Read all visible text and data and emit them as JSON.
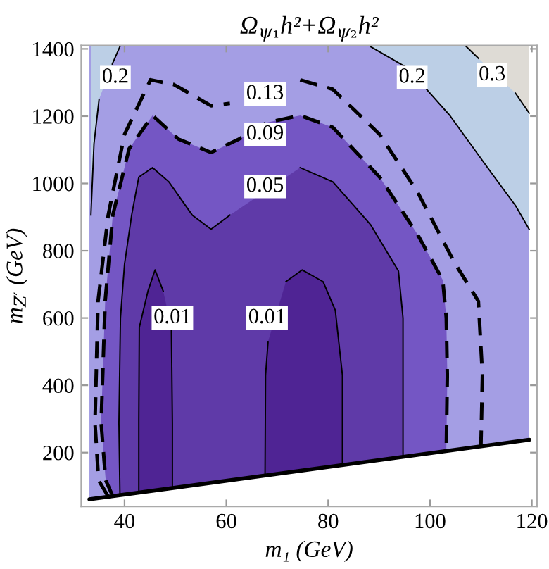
{
  "chart_data": {
    "type": "line",
    "title": "Ω$_{ψ₁}$h²+Ω$_{ψ₂}$h²",
    "xlabel": "m₁ (GeV)",
    "ylabel": "m$_{Z′}$ (GeV)",
    "xlim": [
      31.5,
      121
    ],
    "ylim": [
      40,
      1410
    ],
    "xticks": [
      40,
      60,
      80,
      100,
      120
    ],
    "yticks": [
      200,
      400,
      600,
      800,
      1000,
      1200,
      1400
    ],
    "series": [
      {
        "color": "#000000",
        "x": [
          33.1,
          119.5
        ],
        "values": [
          61,
          238
        ]
      },
      {
        "color": "#000000",
        "x": [
          39.1,
          37.6,
          35.9,
          35.0,
          34.0,
          33.4
        ],
        "values": [
          1407,
          1355,
          null,
          1250,
          1118,
          906
        ]
      },
      {
        "color": "#000000",
        "x": [
          88.3,
          95.6,
          103.9,
          111.3,
          116.8,
          119.5
        ],
        "values": [
          1407,
          1343,
          1202,
          1047,
          934,
          863
        ]
      },
      {
        "color": "#000000",
        "x": [
          107.1,
          109.5,
          113.0,
          116.8,
          119.5
        ],
        "values": [
          1407,
          1372,
          null,
          1268,
          1209
        ]
      },
      {
        "color": "#000000",
        "line_style": "dashed",
        "x": [
          36.8,
          34.9,
          34.2,
          34.8,
          36.8,
          40.0,
          45.1,
          49.7,
          57.0,
          60.7,
          66.2,
          74.5,
          80.9,
          90.1,
          97.5,
          104.8,
          109.5,
          110.3,
          110.0
        ],
        "values": [
          69,
          118,
          288,
          650,
          906,
          1146,
          1308,
          1294,
          1231,
          1238,
          null,
          1308,
          1280,
          1146,
          976,
          765,
          650,
          430,
          219
        ]
      },
      {
        "color": "#000000",
        "line_style": "dashed",
        "x": [
          37.7,
          36.3,
          35.4,
          36.2,
          37.7,
          40.9,
          45.5,
          50.6,
          57.0,
          62.5,
          68.0,
          74.5,
          80.9,
          90.1,
          97.5,
          102.5,
          103.2,
          103.4,
          103.2
        ],
        "values": [
          70,
          118,
          288,
          650,
          906,
          1103,
          1202,
          1132,
          1092,
          1132,
          1181,
          1202,
          1167,
          1019,
          850,
          713,
          600,
          430,
          205
        ]
      },
      {
        "color": "#000000",
        "x": [
          39.1,
          38.9,
          39.2,
          40.0,
          41.4,
          42.8,
          45.5,
          48.7,
          53.3,
          57.0,
          60.7,
          66.2,
          74.5,
          80.9,
          88.3,
          93.8,
          94.7,
          94.7,
          94.7
        ],
        "values": [
          73,
          288,
          600,
          760,
          906,
          1019,
          1047,
          1005,
          906,
          864,
          906,
          null,
          1047,
          1005,
          878,
          740,
          600,
          430,
          187
        ]
      },
      {
        "color": "#000000",
        "x": [
          42.8,
          42.8,
          42.9,
          44.6,
          46.0,
          47.6,
          48.3,
          49.2,
          49.4,
          49.4
        ],
        "values": [
          81,
          295,
          572,
          680,
          743,
          680,
          null,
          572,
          288,
          94
        ]
      },
      {
        "color": "#000000",
        "x": [
          67.6,
          67.7,
          68.2,
          69.9,
          71.7,
          74.9,
          79.0,
          81.4,
          82.8,
          82.8
        ],
        "values": [
          132,
          430,
          530,
          null,
          708,
          743,
          708,
          623,
          430,
          163
        ]
      }
    ],
    "bands": [
      {
        "axis": "x",
        "from": 33.1,
        "to": 119.5,
        "color": "#a49ee4"
      }
    ],
    "annotations": [
      {
        "text": "0.2",
        "x": 38.2,
        "y": 1315
      },
      {
        "text": "0.2",
        "x": 96.5,
        "y": 1315
      },
      {
        "text": "0.3",
        "x": 112.2,
        "y": 1322
      },
      {
        "text": "0.13",
        "x": 67.6,
        "y": 1266
      },
      {
        "text": "0.09",
        "x": 67.6,
        "y": 1146
      },
      {
        "text": "0.05",
        "x": 67.6,
        "y": 991
      },
      {
        "text": "0.01",
        "x": 49.4,
        "y": 600
      },
      {
        "text": "0.01",
        "x": 68.0,
        "y": 600
      }
    ]
  }
}
